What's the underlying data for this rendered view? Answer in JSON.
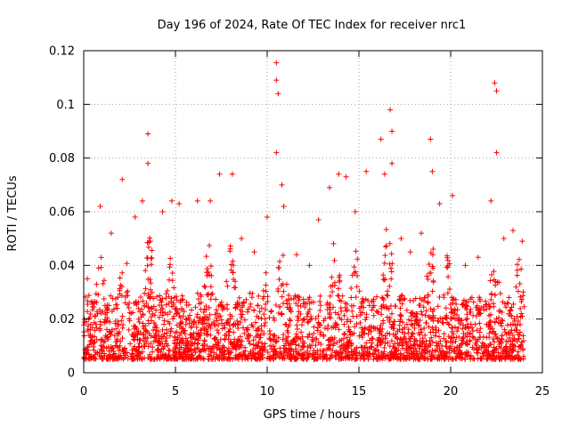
{
  "chart_data": {
    "type": "scatter",
    "title": "Day 196 of 2024, Rate Of TEC Index for receiver nrc1",
    "xlabel": "GPS time / hours",
    "ylabel": "ROTI / TECUs",
    "xlim": [
      0,
      25
    ],
    "ylim": [
      0,
      0.12
    ],
    "xticks": [
      0,
      5,
      10,
      15,
      20,
      25
    ],
    "xtick_labels": [
      "0",
      "5",
      "10",
      "15",
      "20",
      "25"
    ],
    "yticks": [
      0,
      0.02,
      0.04,
      0.06,
      0.08,
      0.1,
      0.12
    ],
    "ytick_labels": [
      "0",
      "0.02",
      "0.04",
      "0.06",
      "0.08",
      "0.1",
      "0.12"
    ],
    "grid": true,
    "marker": "+",
    "color": "#ff0000",
    "x_range_of_data": [
      0,
      24
    ],
    "series": [
      {
        "name": "nrc1",
        "baseline_range": [
          0.005,
          0.03
        ],
        "peaks": [
          {
            "x": 0.2,
            "y": 0.035
          },
          {
            "x": 0.9,
            "y": 0.062
          },
          {
            "x": 1.5,
            "y": 0.052
          },
          {
            "x": 2.1,
            "y": 0.072
          },
          {
            "x": 2.8,
            "y": 0.058
          },
          {
            "x": 3.2,
            "y": 0.064
          },
          {
            "x": 3.5,
            "y": 0.089
          },
          {
            "x": 3.5,
            "y": 0.078
          },
          {
            "x": 4.3,
            "y": 0.06
          },
          {
            "x": 4.8,
            "y": 0.064
          },
          {
            "x": 5.2,
            "y": 0.063
          },
          {
            "x": 6.2,
            "y": 0.064
          },
          {
            "x": 6.9,
            "y": 0.064
          },
          {
            "x": 7.4,
            "y": 0.074
          },
          {
            "x": 8.1,
            "y": 0.074
          },
          {
            "x": 8.6,
            "y": 0.05
          },
          {
            "x": 9.3,
            "y": 0.045
          },
          {
            "x": 10.0,
            "y": 0.058
          },
          {
            "x": 10.5,
            "y": 0.1155
          },
          {
            "x": 10.5,
            "y": 0.109
          },
          {
            "x": 10.6,
            "y": 0.104
          },
          {
            "x": 10.5,
            "y": 0.082
          },
          {
            "x": 10.8,
            "y": 0.07
          },
          {
            "x": 10.9,
            "y": 0.062
          },
          {
            "x": 11.6,
            "y": 0.044
          },
          {
            "x": 12.3,
            "y": 0.04
          },
          {
            "x": 12.8,
            "y": 0.057
          },
          {
            "x": 13.4,
            "y": 0.069
          },
          {
            "x": 13.9,
            "y": 0.074
          },
          {
            "x": 14.3,
            "y": 0.073
          },
          {
            "x": 14.8,
            "y": 0.06
          },
          {
            "x": 15.4,
            "y": 0.075
          },
          {
            "x": 16.2,
            "y": 0.087
          },
          {
            "x": 16.4,
            "y": 0.074
          },
          {
            "x": 16.7,
            "y": 0.098
          },
          {
            "x": 16.8,
            "y": 0.09
          },
          {
            "x": 16.8,
            "y": 0.078
          },
          {
            "x": 17.3,
            "y": 0.05
          },
          {
            "x": 17.8,
            "y": 0.045
          },
          {
            "x": 18.4,
            "y": 0.052
          },
          {
            "x": 18.9,
            "y": 0.087
          },
          {
            "x": 19.0,
            "y": 0.075
          },
          {
            "x": 19.4,
            "y": 0.063
          },
          {
            "x": 20.1,
            "y": 0.066
          },
          {
            "x": 20.8,
            "y": 0.04
          },
          {
            "x": 21.5,
            "y": 0.043
          },
          {
            "x": 22.2,
            "y": 0.064
          },
          {
            "x": 22.4,
            "y": 0.108
          },
          {
            "x": 22.5,
            "y": 0.105
          },
          {
            "x": 22.5,
            "y": 0.082
          },
          {
            "x": 22.9,
            "y": 0.05
          },
          {
            "x": 23.4,
            "y": 0.053
          },
          {
            "x": 23.9,
            "y": 0.049
          }
        ],
        "diurnal_bumps": [
          {
            "center": 0.9,
            "height": 0.045
          },
          {
            "center": 2.2,
            "height": 0.05
          },
          {
            "center": 3.6,
            "height": 0.055
          },
          {
            "center": 4.7,
            "height": 0.045
          },
          {
            "center": 6.8,
            "height": 0.05
          },
          {
            "center": 8.0,
            "height": 0.05
          },
          {
            "center": 9.8,
            "height": 0.045
          },
          {
            "center": 10.8,
            "height": 0.05
          },
          {
            "center": 13.7,
            "height": 0.055
          },
          {
            "center": 14.8,
            "height": 0.05
          },
          {
            "center": 16.6,
            "height": 0.06
          },
          {
            "center": 18.9,
            "height": 0.055
          },
          {
            "center": 19.8,
            "height": 0.045
          },
          {
            "center": 22.4,
            "height": 0.05
          },
          {
            "center": 23.7,
            "height": 0.045
          }
        ]
      }
    ]
  }
}
